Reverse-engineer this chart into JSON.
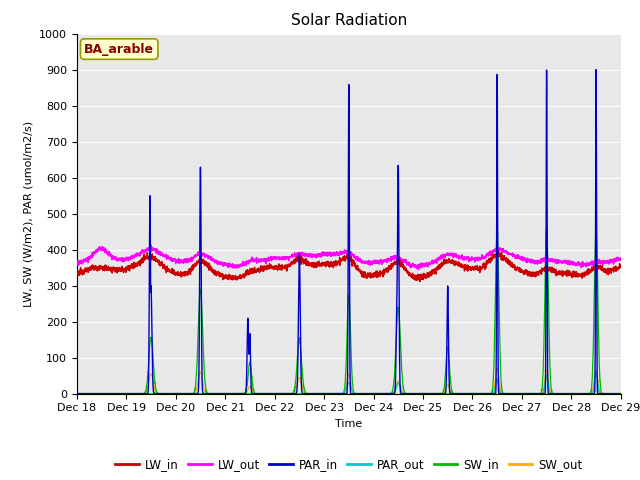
{
  "title": "Solar Radiation",
  "ylabel": "LW, SW (W/m2), PAR (umol/m2/s)",
  "xlabel": "Time",
  "annotation": "BA_arable",
  "xlim": [
    18,
    29
  ],
  "ylim": [
    0,
    1000
  ],
  "yticks": [
    0,
    100,
    200,
    300,
    400,
    500,
    600,
    700,
    800,
    900,
    1000
  ],
  "xtick_labels": [
    "Dec 18",
    "Dec 19",
    "Dec 20",
    "Dec 21",
    "Dec 22",
    "Dec 23",
    "Dec 24",
    "Dec 25",
    "Dec 26",
    "Dec 27",
    "Dec 28",
    "Dec 29"
  ],
  "colors": {
    "LW_in": "#cc0000",
    "LW_out": "#ff00ff",
    "PAR_in": "#0000cc",
    "PAR_out": "#00cccc",
    "SW_in": "#00bb00",
    "SW_out": "#ffaa00"
  },
  "bg_color": "#e8e8e8",
  "annotation_bg": "#ffffcc",
  "annotation_text_color": "#880000",
  "annotation_border_color": "#999900"
}
